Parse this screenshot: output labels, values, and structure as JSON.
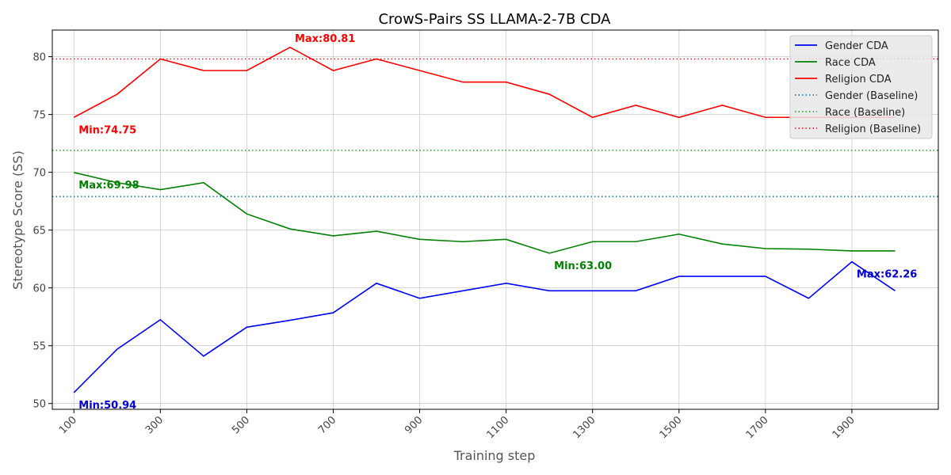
{
  "chart_data": {
    "type": "line",
    "title": "CrowS-Pairs SS LLAMA-2-7B CDA",
    "xlabel": "Training step",
    "ylabel": "Stereotype Score (SS)",
    "xlim": [
      50,
      2100
    ],
    "ylim": [
      49.5,
      82.3
    ],
    "xticks": [
      100,
      300,
      500,
      700,
      900,
      1100,
      1300,
      1500,
      1700,
      1900
    ],
    "yticks": [
      50,
      55,
      60,
      65,
      70,
      75,
      80
    ],
    "grid": true,
    "legend_position": "top-right",
    "x": [
      100,
      200,
      300,
      400,
      500,
      600,
      700,
      800,
      900,
      1000,
      1100,
      1200,
      1300,
      1400,
      1500,
      1600,
      1700,
      1800,
      1900,
      2000
    ],
    "series": [
      {
        "name": "Gender CDA",
        "color": "#0000ff",
        "style": "solid",
        "values": [
          50.94,
          54.7,
          57.25,
          54.1,
          56.6,
          57.2,
          57.85,
          60.4,
          59.1,
          59.75,
          60.4,
          59.75,
          59.75,
          59.75,
          61.0,
          61.0,
          61.0,
          59.1,
          62.26,
          59.75
        ]
      },
      {
        "name": "Race CDA",
        "color": "#008000",
        "style": "solid",
        "values": [
          69.98,
          69.1,
          68.5,
          69.1,
          66.4,
          65.1,
          64.5,
          64.9,
          64.2,
          64.0,
          64.2,
          63.0,
          64.0,
          64.0,
          64.65,
          63.8,
          63.4,
          63.35,
          63.2,
          63.2
        ]
      },
      {
        "name": "Religion CDA",
        "color": "#ff0000",
        "style": "solid",
        "values": [
          74.75,
          76.75,
          79.8,
          78.8,
          78.8,
          80.81,
          78.8,
          79.8,
          78.8,
          77.8,
          77.8,
          76.75,
          74.75,
          75.8,
          74.75,
          75.8,
          74.75,
          74.75,
          74.75,
          74.75
        ]
      }
    ],
    "baselines": [
      {
        "name": "Gender (Baseline)",
        "color": "#1f77b4",
        "style": "dotted",
        "value": 67.9
      },
      {
        "name": "Race (Baseline)",
        "color": "#2ca02c",
        "style": "dotted",
        "value": 71.9
      },
      {
        "name": "Religion (Baseline)",
        "color": "#d62728",
        "style": "dotted",
        "value": 79.8
      }
    ],
    "annotations": [
      {
        "text": "Max:80.81",
        "color": "#ff0000",
        "x": 600,
        "y": 80.81,
        "anchor": "above"
      },
      {
        "text": "Min:74.75",
        "color": "#ff0000",
        "x": 100,
        "y": 74.75,
        "anchor": "below"
      },
      {
        "text": "Max:69.98",
        "color": "#008000",
        "x": 100,
        "y": 69.98,
        "anchor": "below"
      },
      {
        "text": "Min:63.00",
        "color": "#008000",
        "x": 1200,
        "y": 63.0,
        "anchor": "below"
      },
      {
        "text": "Max:62.26",
        "color": "#0000cd",
        "x": 1900,
        "y": 62.26,
        "anchor": "below"
      },
      {
        "text": "Min:50.94",
        "color": "#0000cd",
        "x": 100,
        "y": 50.94,
        "anchor": "below"
      }
    ]
  }
}
